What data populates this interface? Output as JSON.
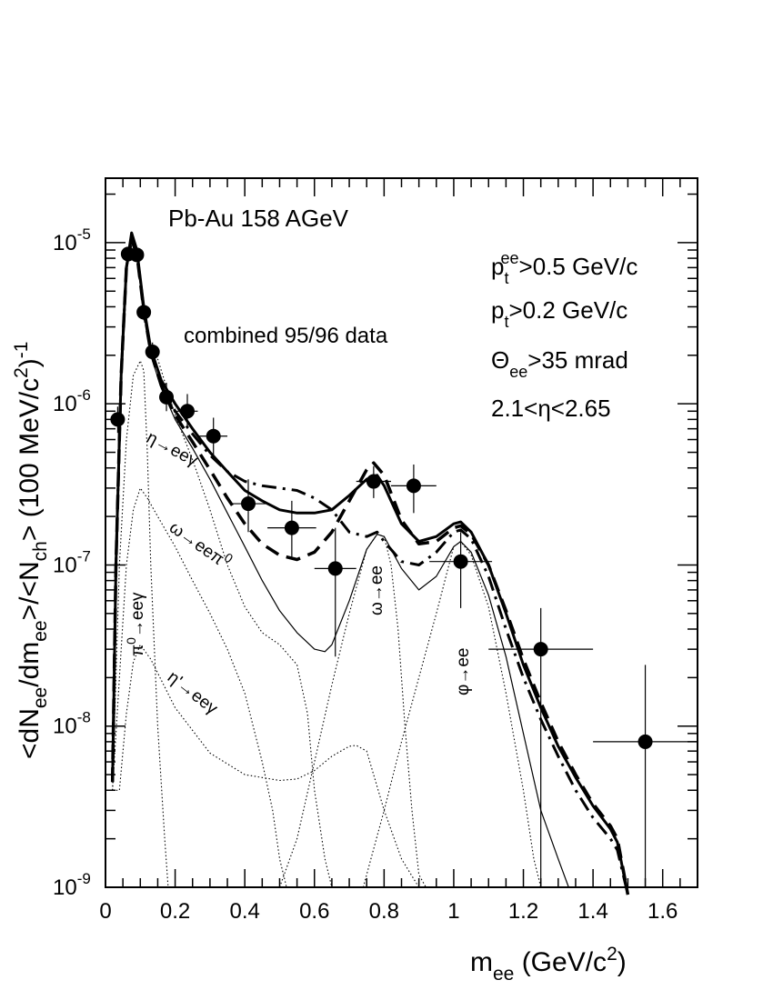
{
  "chart_data": {
    "type": "scatter",
    "xlabel": {
      "main": "m",
      "sub": "ee",
      "rest": " (GeV/c",
      "sup": "2",
      "end": ")"
    },
    "ylabel": "<dNee/dmee>/<Nch> (100 MeV/c2)-1",
    "xlim": [
      0,
      1.7
    ],
    "ylim_log10": [
      -9,
      -4.6
    ],
    "x_ticks": [
      "0",
      "0.2",
      "0.4",
      "0.6",
      "0.8",
      "1",
      "1.2",
      "1.4",
      "1.6"
    ],
    "y_ticks": [
      {
        "base": "10",
        "exp": "-9"
      },
      {
        "base": "10",
        "exp": "-8"
      },
      {
        "base": "10",
        "exp": "-7"
      },
      {
        "base": "10",
        "exp": "-6"
      },
      {
        "base": "10",
        "exp": "-5"
      }
    ],
    "annotations": {
      "system": "Pb-Au 158 AGeV",
      "dataset": "combined 95/96 data",
      "cut_pt_ee": {
        "p": "p",
        "sub": "t",
        "sup": "ee",
        "rest": ">0.5 GeV/c"
      },
      "cut_pt": {
        "p": "p",
        "sub": "t",
        "rest": ">0.2 GeV/c"
      },
      "cut_theta": {
        "p": "Θ",
        "sub": "ee",
        "rest": ">35 mrad"
      },
      "cut_eta": "2.1<η<2.65"
    },
    "process_labels": {
      "eta_dalitz": "η→eeγ",
      "omega_dalitz": "ω→eeπ",
      "omega_dalitz_sup": "0",
      "pi0_dalitz": "π",
      "pi0_dalitz_sup": "0",
      "pi0_dalitz_rest": "→eeγ",
      "etaprime_dalitz": "η'→eeγ",
      "omega_ee": "ω→ee",
      "phi_ee": "φ→ee"
    },
    "data_points": [
      {
        "x": 0.035,
        "y": 8e-07,
        "xerr": 0.0,
        "yerr_lo": 6.6e-07,
        "yerr_hi": 9.6e-07
      },
      {
        "x": 0.065,
        "y": 8.5e-06,
        "xerr": 0.0,
        "yerr_lo": 7.7e-06,
        "yerr_hi": 9.3e-06
      },
      {
        "x": 0.09,
        "y": 8.4e-06,
        "xerr": 0.0,
        "yerr_lo": 7.6e-06,
        "yerr_hi": 9.2e-06
      },
      {
        "x": 0.11,
        "y": 3.7e-06,
        "xerr": 0.0,
        "yerr_lo": 3.3e-06,
        "yerr_hi": 4.1e-06
      },
      {
        "x": 0.135,
        "y": 2.1e-06,
        "xerr": 0.0,
        "yerr_lo": 1.85e-06,
        "yerr_hi": 2.4e-06
      },
      {
        "x": 0.175,
        "y": 1.1e-06,
        "xerr": 0.02,
        "yerr_lo": 9e-07,
        "yerr_hi": 1.35e-06
      },
      {
        "x": 0.235,
        "y": 9e-07,
        "xerr": 0.03,
        "yerr_lo": 7e-07,
        "yerr_hi": 1.15e-06
      },
      {
        "x": 0.31,
        "y": 6.3e-07,
        "xerr": 0.04,
        "yerr_lo": 4.6e-07,
        "yerr_hi": 8.2e-07
      },
      {
        "x": 0.41,
        "y": 2.4e-07,
        "xerr": 0.05,
        "yerr_lo": 1.6e-07,
        "yerr_hi": 3.4e-07
      },
      {
        "x": 0.535,
        "y": 1.7e-07,
        "xerr": 0.07,
        "yerr_lo": 1.1e-07,
        "yerr_hi": 2.5e-07
      },
      {
        "x": 0.66,
        "y": 9.5e-08,
        "xerr": 0.06,
        "yerr_lo": 2.7e-08,
        "yerr_hi": 1.7e-07
      },
      {
        "x": 0.77,
        "y": 3.3e-07,
        "xerr": 0.05,
        "yerr_lo": 2.6e-07,
        "yerr_hi": 4.1e-07
      },
      {
        "x": 0.885,
        "y": 3.1e-07,
        "xerr": 0.065,
        "yerr_lo": 2.1e-07,
        "yerr_hi": 4.2e-07
      },
      {
        "x": 1.02,
        "y": 1.05e-07,
        "xerr": 0.09,
        "yerr_lo": 5.4e-08,
        "yerr_hi": 1.6e-07
      },
      {
        "x": 1.25,
        "y": 3e-08,
        "xerr": 0.15,
        "yerr_lo": 1e-09,
        "yerr_hi": 5.4e-08
      },
      {
        "x": 1.55,
        "y": 8e-09,
        "xerr": 0.15,
        "yerr_lo": 1e-09,
        "yerr_hi": 2.4e-08
      }
    ],
    "series": [
      {
        "style": "solid-thick",
        "points": [
          [
            0.02,
            4.5e-09
          ],
          [
            0.03,
            1e-07
          ],
          [
            0.045,
            1.5e-06
          ],
          [
            0.06,
            7e-06
          ],
          [
            0.075,
            1.15e-05
          ],
          [
            0.09,
            9e-06
          ],
          [
            0.11,
            4e-06
          ],
          [
            0.13,
            2.2e-06
          ],
          [
            0.16,
            1.4e-06
          ],
          [
            0.2,
            1e-06
          ],
          [
            0.25,
            7e-07
          ],
          [
            0.3,
            5e-07
          ],
          [
            0.35,
            3.8e-07
          ],
          [
            0.4,
            2.9e-07
          ],
          [
            0.45,
            2.5e-07
          ],
          [
            0.5,
            2.2e-07
          ],
          [
            0.55,
            2.1e-07
          ],
          [
            0.6,
            2.1e-07
          ],
          [
            0.65,
            2.2e-07
          ],
          [
            0.7,
            2.7e-07
          ],
          [
            0.75,
            3.4e-07
          ],
          [
            0.78,
            3.6e-07
          ],
          [
            0.8,
            3.1e-07
          ],
          [
            0.85,
            1.8e-07
          ],
          [
            0.9,
            1.4e-07
          ],
          [
            0.95,
            1.5e-07
          ],
          [
            1.0,
            1.8e-07
          ],
          [
            1.02,
            1.85e-07
          ],
          [
            1.05,
            1.6e-07
          ],
          [
            1.1,
            1e-07
          ],
          [
            1.15,
            5e-08
          ],
          [
            1.2,
            2.4e-08
          ],
          [
            1.25,
            1.3e-08
          ],
          [
            1.3,
            7.5e-09
          ],
          [
            1.35,
            4.8e-09
          ],
          [
            1.4,
            3.2e-09
          ],
          [
            1.45,
            2.3e-09
          ],
          [
            1.47,
            1.9e-09
          ],
          [
            1.5,
            9e-10
          ]
        ]
      },
      {
        "style": "dashed-thick",
        "points": [
          [
            0.02,
            4.5e-09
          ],
          [
            0.03,
            1e-07
          ],
          [
            0.045,
            1.5e-06
          ],
          [
            0.06,
            7e-06
          ],
          [
            0.075,
            1.05e-05
          ],
          [
            0.09,
            8.5e-06
          ],
          [
            0.11,
            3.8e-06
          ],
          [
            0.13,
            2.1e-06
          ],
          [
            0.16,
            1.3e-06
          ],
          [
            0.2,
            8.5e-07
          ],
          [
            0.25,
            5.8e-07
          ],
          [
            0.3,
            3.9e-07
          ],
          [
            0.35,
            2.6e-07
          ],
          [
            0.4,
            1.8e-07
          ],
          [
            0.45,
            1.35e-07
          ],
          [
            0.5,
            1.15e-07
          ],
          [
            0.55,
            1.08e-07
          ],
          [
            0.6,
            1.2e-07
          ],
          [
            0.65,
            1.6e-07
          ],
          [
            0.7,
            2.5e-07
          ],
          [
            0.75,
            3.9e-07
          ],
          [
            0.77,
            4.3e-07
          ],
          [
            0.8,
            3.6e-07
          ],
          [
            0.85,
            1.9e-07
          ],
          [
            0.9,
            1.35e-07
          ],
          [
            0.95,
            1.4e-07
          ],
          [
            1.0,
            1.7e-07
          ],
          [
            1.02,
            1.75e-07
          ],
          [
            1.05,
            1.55e-07
          ],
          [
            1.1,
            1e-07
          ],
          [
            1.15,
            5.2e-08
          ],
          [
            1.2,
            2.6e-08
          ],
          [
            1.25,
            1.4e-08
          ],
          [
            1.3,
            8e-09
          ],
          [
            1.35,
            5e-09
          ],
          [
            1.4,
            3.3e-09
          ],
          [
            1.45,
            2.4e-09
          ],
          [
            1.47,
            2e-09
          ],
          [
            1.5,
            9e-10
          ]
        ]
      },
      {
        "style": "dashdot-thick",
        "points": [
          [
            0.02,
            4.5e-09
          ],
          [
            0.03,
            1e-07
          ],
          [
            0.045,
            1.5e-06
          ],
          [
            0.06,
            7e-06
          ],
          [
            0.075,
            1.05e-05
          ],
          [
            0.09,
            8.5e-06
          ],
          [
            0.11,
            3.8e-06
          ],
          [
            0.13,
            2.1e-06
          ],
          [
            0.16,
            1.3e-06
          ],
          [
            0.2,
            9e-07
          ],
          [
            0.25,
            6.5e-07
          ],
          [
            0.3,
            4.8e-07
          ],
          [
            0.35,
            3.8e-07
          ],
          [
            0.4,
            3.3e-07
          ],
          [
            0.45,
            3.1e-07
          ],
          [
            0.5,
            3e-07
          ],
          [
            0.55,
            2.9e-07
          ],
          [
            0.6,
            2.6e-07
          ],
          [
            0.65,
            2.2e-07
          ],
          [
            0.7,
            1.6e-07
          ],
          [
            0.75,
            1.5e-07
          ],
          [
            0.78,
            1.6e-07
          ],
          [
            0.8,
            1.4e-07
          ],
          [
            0.85,
            1.05e-07
          ],
          [
            0.9,
            1e-07
          ],
          [
            0.95,
            1.2e-07
          ],
          [
            1.0,
            1.6e-07
          ],
          [
            1.02,
            1.65e-07
          ],
          [
            1.05,
            1.45e-07
          ],
          [
            1.1,
            8.5e-08
          ],
          [
            1.15,
            4e-08
          ],
          [
            1.2,
            2e-08
          ],
          [
            1.25,
            1.1e-08
          ],
          [
            1.3,
            6.5e-09
          ],
          [
            1.35,
            4e-09
          ],
          [
            1.4,
            2.7e-09
          ],
          [
            1.45,
            2e-09
          ],
          [
            1.47,
            1.7e-09
          ],
          [
            1.5,
            9e-10
          ]
        ]
      },
      {
        "style": "solid-thin",
        "points": [
          [
            0.02,
            4.5e-09
          ],
          [
            0.03,
            1e-07
          ],
          [
            0.045,
            1.5e-06
          ],
          [
            0.06,
            7e-06
          ],
          [
            0.075,
            1e-05
          ],
          [
            0.09,
            8e-06
          ],
          [
            0.11,
            3.6e-06
          ],
          [
            0.13,
            2e-06
          ],
          [
            0.16,
            1.25e-06
          ],
          [
            0.2,
            8e-07
          ],
          [
            0.25,
            5.3e-07
          ],
          [
            0.3,
            3.4e-07
          ],
          [
            0.35,
            2.1e-07
          ],
          [
            0.4,
            1.3e-07
          ],
          [
            0.45,
            8e-08
          ],
          [
            0.5,
            5.2e-08
          ],
          [
            0.55,
            3.8e-08
          ],
          [
            0.6,
            3e-08
          ],
          [
            0.63,
            2.9e-08
          ],
          [
            0.65,
            3.2e-08
          ],
          [
            0.7,
            6e-08
          ],
          [
            0.75,
            1.25e-07
          ],
          [
            0.78,
            1.55e-07
          ],
          [
            0.8,
            1.5e-07
          ],
          [
            0.85,
            9.5e-08
          ],
          [
            0.9,
            7e-08
          ],
          [
            0.95,
            8.5e-08
          ],
          [
            1.0,
            1.3e-07
          ],
          [
            1.02,
            1.4e-07
          ],
          [
            1.05,
            1.2e-07
          ],
          [
            1.1,
            6.5e-08
          ],
          [
            1.15,
            2.7e-08
          ],
          [
            1.2,
            9e-09
          ],
          [
            1.25,
            3e-09
          ],
          [
            1.3,
            1.5e-09
          ],
          [
            1.33,
            1e-09
          ]
        ]
      },
      {
        "style": "dotted",
        "name": "pi0",
        "points": [
          [
            0.02,
            4e-09
          ],
          [
            0.04,
            1e-07
          ],
          [
            0.06,
            6e-07
          ],
          [
            0.08,
            1.5e-06
          ],
          [
            0.1,
            1.85e-06
          ],
          [
            0.11,
            1.6e-06
          ],
          [
            0.12,
            5e-07
          ],
          [
            0.13,
            1e-07
          ],
          [
            0.15,
            1e-08
          ],
          [
            0.17,
            2e-09
          ],
          [
            0.18,
            1e-09
          ]
        ]
      },
      {
        "style": "dotted",
        "name": "eta",
        "points": [
          [
            0.02,
            4e-09
          ],
          [
            0.04,
            2e-08
          ],
          [
            0.06,
            1e-07
          ],
          [
            0.08,
            2.2e-07
          ],
          [
            0.1,
            3e-07
          ],
          [
            0.12,
            2.6e-07
          ],
          [
            0.15,
            2e-07
          ],
          [
            0.2,
            1.3e-07
          ],
          [
            0.25,
            8e-08
          ],
          [
            0.3,
            5e-08
          ],
          [
            0.35,
            3e-08
          ],
          [
            0.4,
            1.6e-08
          ],
          [
            0.45,
            6e-09
          ],
          [
            0.48,
            3e-09
          ],
          [
            0.5,
            1.5e-09
          ],
          [
            0.52,
            1e-09
          ]
        ]
      },
      {
        "style": "dotted",
        "name": "omega-dalitz",
        "points": [
          [
            0.02,
            4e-09
          ],
          [
            0.04,
            4e-09
          ],
          [
            0.06,
            1.2e-08
          ],
          [
            0.08,
            2.5e-08
          ],
          [
            0.1,
            3.2e-08
          ],
          [
            0.13,
            2.6e-08
          ],
          [
            0.2,
            1.3e-08
          ],
          [
            0.3,
            6.8e-09
          ],
          [
            0.4,
            5e-09
          ],
          [
            0.5,
            4.6e-09
          ],
          [
            0.55,
            4.7e-09
          ],
          [
            0.6,
            5.3e-09
          ],
          [
            0.65,
            6.5e-09
          ],
          [
            0.7,
            7.5e-09
          ],
          [
            0.72,
            7.6e-09
          ],
          [
            0.75,
            7e-09
          ],
          [
            0.8,
            3e-09
          ],
          [
            0.85,
            1.5e-09
          ],
          [
            0.9,
            1e-09
          ]
        ]
      },
      {
        "style": "dotted",
        "name": "etaprime",
        "points": [
          [
            0.15,
            1.9e-06
          ],
          [
            0.2,
            8.5e-07
          ],
          [
            0.25,
            4.5e-07
          ],
          [
            0.3,
            2.2e-07
          ],
          [
            0.35,
            1e-07
          ],
          [
            0.4,
            5.5e-08
          ],
          [
            0.45,
            3.8e-08
          ],
          [
            0.5,
            3.2e-08
          ],
          [
            0.55,
            2.4e-08
          ],
          [
            0.58,
            1.2e-08
          ],
          [
            0.6,
            4e-09
          ],
          [
            0.63,
            1.5e-09
          ],
          [
            0.65,
            1e-09
          ]
        ]
      },
      {
        "style": "dotted",
        "name": "omega",
        "points": [
          [
            0.5,
            1e-09
          ],
          [
            0.55,
            2e-09
          ],
          [
            0.6,
            6e-09
          ],
          [
            0.65,
            1.8e-08
          ],
          [
            0.7,
            5e-08
          ],
          [
            0.75,
            1.25e-07
          ],
          [
            0.78,
            1.55e-07
          ],
          [
            0.8,
            1.5e-07
          ],
          [
            0.82,
            1e-07
          ],
          [
            0.84,
            4e-08
          ],
          [
            0.86,
            1e-08
          ],
          [
            0.88,
            3e-09
          ],
          [
            0.9,
            1.2e-09
          ],
          [
            0.92,
            1e-09
          ]
        ]
      },
      {
        "style": "dotted",
        "name": "phi",
        "points": [
          [
            0.74,
            1e-09
          ],
          [
            0.8,
            3e-09
          ],
          [
            0.85,
            8e-09
          ],
          [
            0.9,
            2e-08
          ],
          [
            0.95,
            5e-08
          ],
          [
            1.0,
            1.3e-07
          ],
          [
            1.02,
            1.4e-07
          ],
          [
            1.05,
            1.15e-07
          ],
          [
            1.1,
            5.5e-08
          ],
          [
            1.15,
            1.6e-08
          ],
          [
            1.2,
            4e-09
          ],
          [
            1.23,
            1.5e-09
          ],
          [
            1.25,
            1e-09
          ]
        ]
      }
    ]
  }
}
